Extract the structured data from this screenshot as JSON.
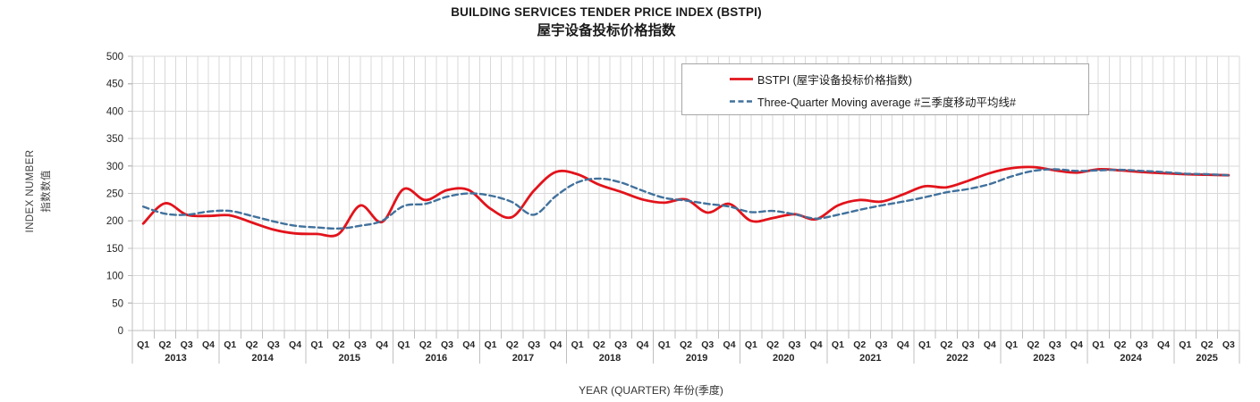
{
  "title": {
    "line1": "BUILDING SERVICES TENDER PRICE INDEX (BSTPI)",
    "line2": "屋宇设备投标价格指数"
  },
  "axes": {
    "y_title_line1": "INDEX NUMBER",
    "y_title_line2": "指数数值",
    "x_title": "YEAR (QUARTER) 年份(季度)"
  },
  "colors": {
    "grid": "#d9d9d9",
    "axis": "#bfbfbf",
    "tick": "#bfbfbf",
    "label": "#262626",
    "legend_border": "#a6a6a6"
  },
  "chart_data": {
    "type": "line",
    "title": "BUILDING SERVICES TENDER PRICE INDEX (BSTPI) 屋宇设备投标价格指数",
    "xlabel": "YEAR (QUARTER) 年份(季度)",
    "ylabel": "INDEX NUMBER 指数数值",
    "ylim": [
      0,
      500
    ],
    "ytick_step": 50,
    "grid": true,
    "legend_position": "top-right",
    "x_groups": [
      {
        "year": "2013",
        "quarters": [
          "Q1",
          "Q2",
          "Q3",
          "Q4"
        ]
      },
      {
        "year": "2014",
        "quarters": [
          "Q1",
          "Q2",
          "Q3",
          "Q4"
        ]
      },
      {
        "year": "2015",
        "quarters": [
          "Q1",
          "Q2",
          "Q3",
          "Q4"
        ]
      },
      {
        "year": "2016",
        "quarters": [
          "Q1",
          "Q2",
          "Q3",
          "Q4"
        ]
      },
      {
        "year": "2017",
        "quarters": [
          "Q1",
          "Q2",
          "Q3",
          "Q4"
        ]
      },
      {
        "year": "2018",
        "quarters": [
          "Q1",
          "Q2",
          "Q3",
          "Q4"
        ]
      },
      {
        "year": "2019",
        "quarters": [
          "Q1",
          "Q2",
          "Q3",
          "Q4"
        ]
      },
      {
        "year": "2020",
        "quarters": [
          "Q1",
          "Q2",
          "Q3",
          "Q4"
        ]
      },
      {
        "year": "2021",
        "quarters": [
          "Q1",
          "Q2",
          "Q3",
          "Q4"
        ]
      },
      {
        "year": "2022",
        "quarters": [
          "Q1",
          "Q2",
          "Q3",
          "Q4"
        ]
      },
      {
        "year": "2023",
        "quarters": [
          "Q1",
          "Q2",
          "Q3",
          "Q4"
        ]
      },
      {
        "year": "2024",
        "quarters": [
          "Q1",
          "Q2",
          "Q3",
          "Q4"
        ]
      },
      {
        "year": "2025",
        "quarters": [
          "Q1",
          "Q2",
          "Q3"
        ]
      }
    ],
    "series": [
      {
        "name": "BSTPI (屋宇设备投标价格指数)",
        "color": "#e2131b",
        "line_style": "solid",
        "values": [
          195,
          232,
          211,
          209,
          210,
          197,
          184,
          177,
          176,
          176,
          228,
          198,
          258,
          238,
          256,
          256,
          222,
          207,
          255,
          289,
          285,
          266,
          253,
          239,
          233,
          239,
          215,
          231,
          200,
          205,
          212,
          203,
          228,
          238,
          235,
          248,
          263,
          261,
          273,
          287,
          296,
          298,
          292,
          288,
          294,
          292,
          289,
          287,
          285,
          284,
          283
        ]
      },
      {
        "name": "Three-Quarter Moving average #三季度移动平均线#",
        "color": "#41719c",
        "line_style": "dashed",
        "values": [
          226,
          213,
          211,
          217,
          218,
          209,
          199,
          191,
          188,
          186,
          191,
          200,
          227,
          231,
          244,
          250,
          246,
          234,
          211,
          245,
          270,
          277,
          270,
          255,
          242,
          237,
          231,
          226,
          216,
          218,
          212,
          204,
          211,
          220,
          228,
          235,
          243,
          252,
          258,
          267,
          281,
          291,
          294,
          291,
          292,
          293,
          291,
          289,
          286,
          285,
          283
        ]
      }
    ]
  }
}
